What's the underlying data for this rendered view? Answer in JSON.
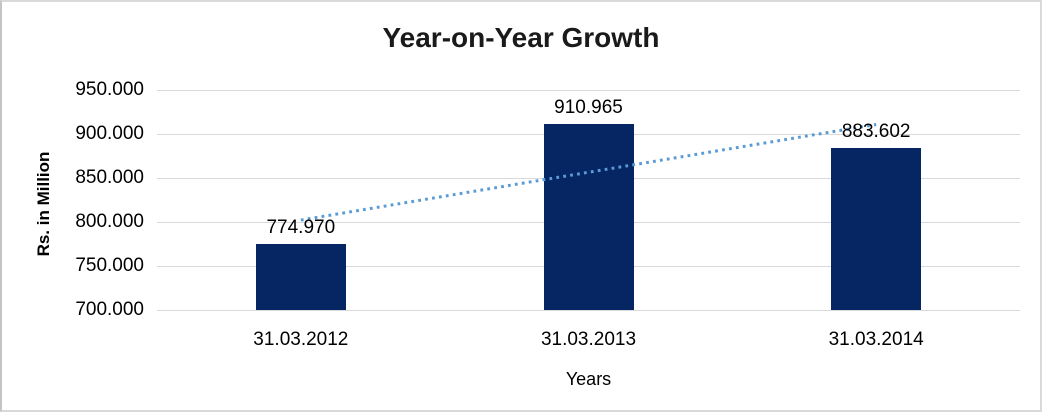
{
  "frame": {
    "background": "#ffffff",
    "border_color": "#d9d9d9",
    "left_edge_color": "#7a7a7a"
  },
  "chart_data": {
    "type": "bar",
    "title": "Year-on-Year Growth",
    "xlabel": "Years",
    "ylabel": "Rs. in Million",
    "categories": [
      "31.03.2012",
      "31.03.2013",
      "31.03.2014"
    ],
    "values": [
      774.97,
      910.965,
      883.602
    ],
    "value_labels": [
      "774.970",
      "910.965",
      "883.602"
    ],
    "ylim": [
      700,
      950
    ],
    "y_ticks": [
      {
        "value": 700,
        "label": "700.000"
      },
      {
        "value": 750,
        "label": "750.000"
      },
      {
        "value": 800,
        "label": "800.000"
      },
      {
        "value": 850,
        "label": "850.000"
      },
      {
        "value": 900,
        "label": "900.000"
      },
      {
        "value": 950,
        "label": "950.000"
      }
    ],
    "grid": true,
    "legend": "none",
    "bar_color": "#052563",
    "gridline_color": "#d9d9d9",
    "text_color": "#000000",
    "title_color": "#1a1a1a",
    "trendline": {
      "type": "linear",
      "style": "dotted",
      "color": "#5b9bd5"
    }
  }
}
